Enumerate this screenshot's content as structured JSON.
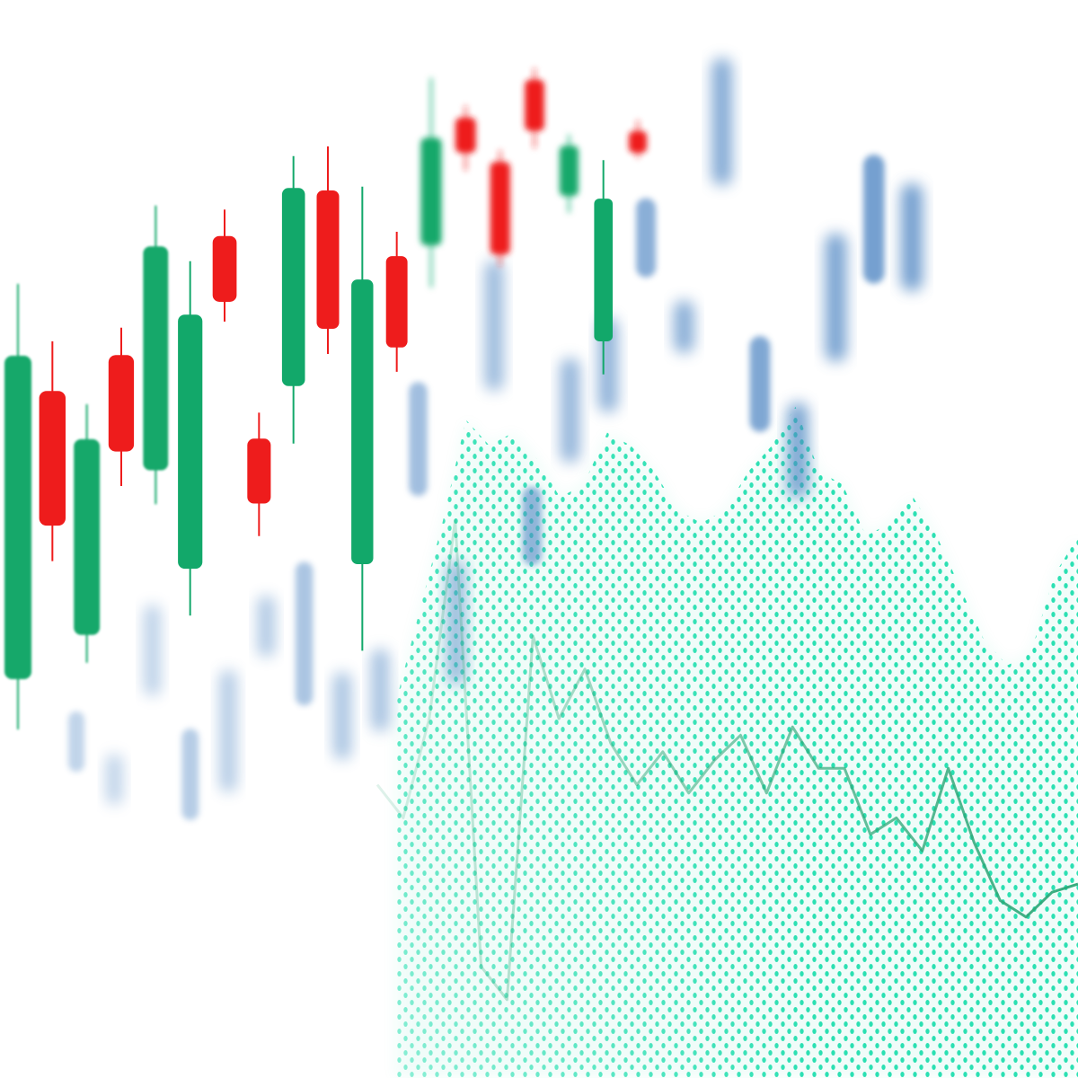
{
  "chart_data": {
    "type": "candlestick",
    "title": "",
    "xlabel": "",
    "ylabel": "",
    "grid": false,
    "legend": "none",
    "colors": {
      "up": "#12a86a",
      "down": "#ee1c1c",
      "blue": "#4f86c3",
      "mint": "#22e0b0",
      "line": "#2ea777"
    },
    "candles": [
      {
        "dir": "up",
        "open": 13,
        "close": 58,
        "high": 68,
        "low": 6
      },
      {
        "dir": "down",
        "open": 53,
        "close": 34,
        "high": 60,
        "low": 29
      },
      {
        "dir": "up",
        "open": 18,
        "close": 46,
        "high": 51,
        "low": 14
      },
      {
        "dir": "down",
        "open": 58,
        "close": 44,
        "high": 62,
        "low": 39
      },
      {
        "dir": "up",
        "open": 41,
        "close": 74,
        "high": 80,
        "low": 36
      },
      {
        "dir": "up",
        "open": 26,
        "close": 64,
        "high": 72,
        "low": 19
      },
      {
        "dir": "down",
        "open": 76,
        "close": 66,
        "high": 80,
        "low": 63
      },
      {
        "dir": "down",
        "open": 45,
        "close": 35,
        "high": 49,
        "low": 30
      },
      {
        "dir": "up",
        "open": 53,
        "close": 84,
        "high": 89,
        "low": 44
      },
      {
        "dir": "down",
        "open": 84,
        "close": 62,
        "high": 91,
        "low": 58
      },
      {
        "dir": "up",
        "open": 24,
        "close": 70,
        "high": 85,
        "low": 10
      },
      {
        "dir": "down",
        "open": 74,
        "close": 59,
        "high": 78,
        "low": 55
      },
      {
        "dir": "up",
        "open": 76,
        "close": 94,
        "high": 104,
        "low": 69
      },
      {
        "dir": "down",
        "open": 98,
        "close": 92,
        "high": 100,
        "low": 89
      },
      {
        "dir": "down",
        "open": 91,
        "close": 75,
        "high": 93,
        "low": 73
      },
      {
        "dir": "down",
        "open": 106,
        "close": 97,
        "high": 108,
        "low": 94
      },
      {
        "dir": "up",
        "open": 86,
        "close": 95,
        "high": 97,
        "low": 83
      },
      {
        "dir": "up",
        "open": 60,
        "close": 86,
        "high": 93,
        "low": 54
      },
      {
        "dir": "down",
        "open": 99,
        "close": 95,
        "high": 101,
        "low": 94
      }
    ],
    "blue_bars": [
      {
        "low": 18,
        "high": 30
      },
      {
        "low": 10,
        "high": 20
      },
      {
        "low": 30,
        "high": 48
      },
      {
        "low": 4,
        "high": 22
      },
      {
        "low": 8,
        "high": 32
      },
      {
        "low": 33,
        "high": 45
      },
      {
        "low": 22,
        "high": 50
      },
      {
        "low": 10,
        "high": 27
      },
      {
        "low": 14,
        "high": 30
      },
      {
        "low": 58,
        "high": 80
      },
      {
        "low": 20,
        "high": 44
      },
      {
        "low": 75,
        "high": 100
      },
      {
        "low": 40,
        "high": 55
      },
      {
        "low": 58,
        "high": 78
      },
      {
        "low": 66,
        "high": 84
      },
      {
        "low": 90,
        "high": 105
      },
      {
        "low": 74,
        "high": 84
      },
      {
        "low": 104,
        "high": 128
      },
      {
        "low": 56,
        "high": 74
      },
      {
        "low": 42,
        "high": 60
      },
      {
        "low": 66,
        "high": 90
      },
      {
        "low": 79,
        "high": 103
      },
      {
        "low": 76,
        "high": 96
      }
    ],
    "line_series": [
      42,
      38,
      50,
      74,
      20,
      16,
      60,
      50,
      56,
      47,
      42,
      46,
      41,
      45,
      48,
      41,
      49,
      44,
      44,
      36,
      38,
      34,
      44,
      35,
      28,
      26,
      29,
      30
    ],
    "area_series": [
      30,
      44,
      58,
      74,
      70,
      72,
      68,
      62,
      64,
      72,
      70,
      66,
      60,
      58,
      60,
      66,
      70,
      76,
      66,
      64,
      56,
      58,
      62,
      56,
      48,
      40,
      36,
      38,
      50,
      56
    ]
  }
}
